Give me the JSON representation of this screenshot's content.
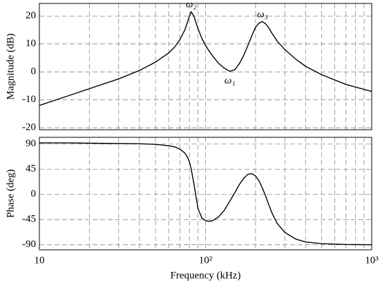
{
  "chart_data": [
    {
      "type": "line",
      "ylabel": "Magnitude (dB)",
      "log_x": true,
      "grid": true,
      "xlim": [
        10,
        1000
      ],
      "xticks": [
        10,
        100,
        1000
      ],
      "xminorticks": [
        20,
        30,
        40,
        50,
        60,
        70,
        80,
        90,
        200,
        300,
        400,
        500,
        600,
        700,
        800,
        900
      ],
      "ylim": [
        -20.7,
        24.5
      ],
      "yticks": [
        -20,
        -10,
        0,
        10,
        20
      ],
      "x": [
        10,
        15,
        20,
        30,
        40,
        50,
        60,
        65,
        70,
        75,
        78,
        80,
        82,
        85,
        90,
        95,
        100,
        105,
        110,
        120,
        130,
        140,
        150,
        160,
        170,
        180,
        190,
        200,
        210,
        220,
        230,
        240,
        250,
        270,
        300,
        350,
        400,
        500,
        700,
        1000
      ],
      "series": [
        {
          "color": "#000000",
          "values": [
            -12,
            -8.5,
            -6,
            -2.5,
            0.5,
            3.5,
            6.8,
            8.8,
            11.5,
            15,
            18,
            20,
            21.5,
            20,
            15.5,
            12,
            9.5,
            7.5,
            5.8,
            3,
            1.3,
            0.2,
            0.8,
            3,
            6,
            9.5,
            13,
            16,
            17.5,
            18,
            17.2,
            15.8,
            14,
            11,
            8,
            4.5,
            2,
            -1,
            -4.5,
            -7
          ]
        }
      ],
      "annotations": [
        "ω₂",
        "ω₁",
        "ω₃"
      ]
    },
    {
      "type": "line",
      "ylabel": "Phase (deg)",
      "xlabel": "Frequency (kHz)",
      "log_x": true,
      "grid": true,
      "xlim": [
        10,
        1000
      ],
      "xticks": [
        10,
        {
          "value": 100,
          "label": "10²"
        },
        {
          "value": 1000,
          "label": "10³"
        }
      ],
      "xminorticks": [
        20,
        30,
        40,
        50,
        60,
        70,
        80,
        90,
        200,
        300,
        400,
        500,
        600,
        700,
        800,
        900
      ],
      "ylim": [
        -99,
        102
      ],
      "yticks": [
        -90,
        -45,
        0,
        45,
        90
      ],
      "x": [
        10,
        15,
        20,
        30,
        40,
        50,
        60,
        65,
        70,
        75,
        78,
        80,
        82,
        85,
        90,
        95,
        100,
        105,
        110,
        120,
        130,
        140,
        150,
        160,
        170,
        180,
        190,
        200,
        210,
        220,
        230,
        240,
        250,
        270,
        300,
        350,
        400,
        500,
        700,
        1000
      ],
      "series": [
        {
          "color": "#000000",
          "values": [
            92,
            92,
            91.5,
            91,
            90.5,
            89.5,
            87,
            85,
            81,
            74,
            66,
            58,
            45,
            20,
            -25,
            -42,
            -47,
            -48,
            -47,
            -40,
            -28,
            -12,
            3,
            18,
            29,
            36,
            37,
            33,
            24,
            11,
            -3,
            -18,
            -32,
            -52,
            -68,
            -80,
            -85,
            -88,
            -89.5,
            -90
          ]
        }
      ]
    }
  ]
}
